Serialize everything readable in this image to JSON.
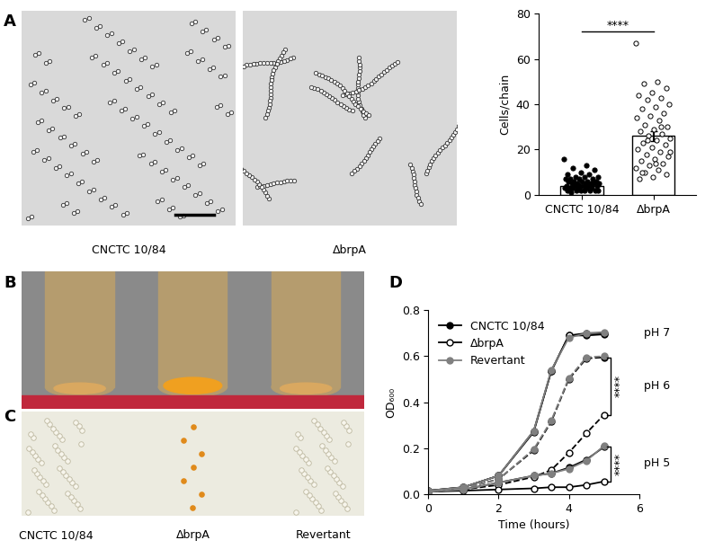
{
  "panels": {
    "A": {
      "label": "A",
      "micrographs": [
        "CNCTC 10/84",
        "ΔbrpA"
      ]
    },
    "B": {
      "label": "B"
    },
    "C": {
      "label": "C",
      "captions": [
        "CNCTC 10/84",
        "ΔbrpA",
        "Revertant"
      ]
    },
    "D": {
      "label": "D"
    }
  },
  "chart_data": [
    {
      "type": "bar",
      "ylabel": "Cells/chain",
      "categories": [
        "CNCTC 10/84",
        "ΔbrpA"
      ],
      "values": [
        4,
        26
      ],
      "errors": [
        0.4,
        2.3
      ],
      "points": [
        [
          16,
          13,
          12,
          11,
          10,
          9,
          9,
          8,
          8,
          8,
          7,
          7,
          7,
          7,
          6,
          6,
          6,
          6,
          6,
          5,
          5,
          5,
          5,
          5,
          5,
          4,
          4,
          4,
          4,
          4,
          4,
          3,
          3,
          3,
          3,
          3,
          3,
          2,
          2,
          2,
          2,
          2,
          2,
          2,
          1
        ],
        [
          67,
          50,
          49,
          47,
          45,
          44,
          43,
          42,
          40,
          39,
          38,
          36,
          35,
          34,
          33,
          31,
          30,
          29,
          28,
          27,
          26,
          25,
          24,
          23,
          22,
          21,
          20,
          19,
          18,
          17,
          16,
          15,
          14,
          13,
          12,
          11,
          10,
          9,
          8,
          7,
          30,
          24,
          19,
          14,
          10
        ]
      ],
      "colors": [
        "#000000",
        "#ffffff"
      ],
      "ylim": [
        0,
        80
      ],
      "yticks": [
        0,
        20,
        40,
        60,
        80
      ],
      "significance": "****"
    },
    {
      "type": "line",
      "xlabel": "Time (hours)",
      "ylabel": "OD₆₀₀",
      "x": [
        0,
        1,
        2,
        3,
        3.5,
        4,
        4.5,
        5
      ],
      "xlim": [
        0,
        6
      ],
      "xticks": [
        0,
        2,
        4,
        6
      ],
      "ylim": [
        0,
        0.8
      ],
      "yticks": [
        {
          "value": 0,
          "label": "0.0"
        },
        {
          "value": 0.2,
          "label": "0.2"
        },
        {
          "value": 0.4,
          "label": "0.4"
        },
        {
          "value": 0.6,
          "label": "0.6"
        },
        {
          "value": 0.8,
          "label": "0.8"
        }
      ],
      "legend": "upper left",
      "series": [
        {
          "name": "CNCTC 10/84",
          "color": "#000000",
          "marker": "filled",
          "conditions": [
            {
              "label": "pH 7",
              "line_style": "solid",
              "values": [
                0.015,
                0.03,
                0.08,
                0.275,
                0.535,
                0.69,
                0.69,
                0.695
              ]
            },
            {
              "label": "pH 6",
              "line_style": "dashed",
              "values": [
                0.01,
                0.025,
                0.065,
                0.19,
                0.315,
                0.5,
                0.59,
                0.595
              ]
            },
            {
              "label": "pH 5",
              "line_style": "solid",
              "values": [
                0.01,
                0.02,
                0.05,
                0.08,
                0.09,
                0.115,
                0.15,
                0.205
              ]
            }
          ]
        },
        {
          "name": "ΔbrpA",
          "color": "#000000",
          "marker": "open",
          "conditions": [
            {
              "label": "pH 7",
              "line_style": "solid",
              "values": [
                0.015,
                0.03,
                0.08,
                0.27,
                0.535,
                0.69,
                0.7,
                0.7
              ]
            },
            {
              "label": "pH 6",
              "line_style": "dashed",
              "values": [
                0.01,
                0.02,
                0.04,
                0.075,
                0.105,
                0.18,
                0.265,
                0.345
              ]
            },
            {
              "label": "pH 5",
              "line_style": "solid",
              "values": [
                0.01,
                0.015,
                0.02,
                0.025,
                0.03,
                0.03,
                0.04,
                0.055
              ]
            }
          ]
        },
        {
          "name": "Revertant",
          "color": "#808080",
          "marker": "filled",
          "conditions": [
            {
              "label": "pH 7",
              "line_style": "solid",
              "values": [
                0.015,
                0.03,
                0.08,
                0.275,
                0.54,
                0.68,
                0.7,
                0.705
              ]
            },
            {
              "label": "pH 6",
              "line_style": "dashed",
              "values": [
                0.01,
                0.025,
                0.065,
                0.195,
                0.32,
                0.505,
                0.595,
                0.6
              ]
            },
            {
              "label": "pH 5",
              "line_style": "solid",
              "values": [
                0.01,
                0.02,
                0.05,
                0.08,
                0.09,
                0.11,
                0.145,
                0.21
              ]
            }
          ]
        }
      ],
      "significance": [
        {
          "condition": "pH 6",
          "text": "****"
        },
        {
          "condition": "pH 5",
          "text": "****"
        }
      ]
    }
  ]
}
